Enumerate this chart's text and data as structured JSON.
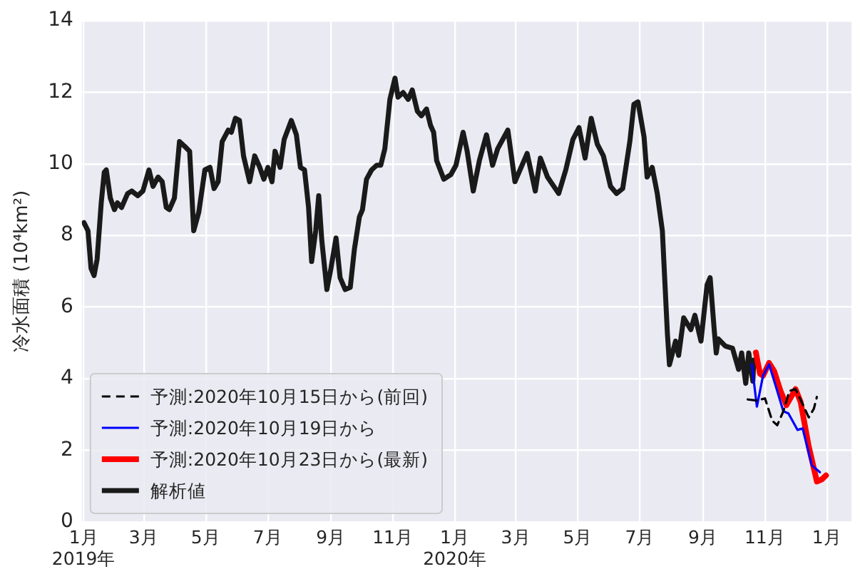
{
  "chart_data": {
    "type": "line",
    "ylabel": "冷水面積 (10⁴km²)",
    "xlim": [
      "2018-12-30",
      "2021-01-25"
    ],
    "ylim": [
      0,
      14
    ],
    "yticks": [
      0,
      2,
      4,
      6,
      8,
      10,
      12,
      14
    ],
    "xticks": [
      {
        "value": "2019-01-01",
        "label": "1月\n2019年"
      },
      {
        "value": "2019-03-01",
        "label": "3月"
      },
      {
        "value": "2019-05-01",
        "label": "5月"
      },
      {
        "value": "2019-07-01",
        "label": "7月"
      },
      {
        "value": "2019-09-01",
        "label": "9月"
      },
      {
        "value": "2019-11-01",
        "label": "11月"
      },
      {
        "value": "2020-01-01",
        "label": "1月\n2020年"
      },
      {
        "value": "2020-03-01",
        "label": "3月"
      },
      {
        "value": "2020-05-01",
        "label": "5月"
      },
      {
        "value": "2020-07-01",
        "label": "7月"
      },
      {
        "value": "2020-09-01",
        "label": "9月"
      },
      {
        "value": "2020-11-01",
        "label": "11月"
      },
      {
        "value": "2021-01-01",
        "label": "1月"
      }
    ],
    "grid": true,
    "legend": "bottom left",
    "marker": "none",
    "series": [
      {
        "name": "予測:2020年10月15日から(前回)",
        "color": "#000000",
        "line_style": "dashed",
        "x": [
          "2020-10-15",
          "2020-10-24",
          "2020-11-01",
          "2020-11-08",
          "2020-11-13",
          "2020-11-19",
          "2020-11-25",
          "2020-12-01",
          "2020-12-08",
          "2020-12-14",
          "2020-12-19",
          "2020-12-22"
        ],
        "values": [
          3.42,
          3.39,
          3.45,
          2.83,
          2.7,
          3.09,
          3.66,
          3.71,
          3.29,
          2.92,
          3.16,
          3.49
        ]
      },
      {
        "name": "予測:2020年10月19日から",
        "color": "#0000ff",
        "line_style": "solid",
        "x": [
          "2020-10-19",
          "2020-10-24",
          "2020-10-30",
          "2020-11-05",
          "2020-11-12",
          "2020-11-19",
          "2020-11-24",
          "2020-12-03",
          "2020-12-08",
          "2020-12-17",
          "2020-12-25"
        ],
        "values": [
          4.4,
          3.22,
          4.08,
          4.4,
          3.75,
          3.09,
          3.03,
          2.57,
          2.61,
          1.58,
          1.39
        ]
      },
      {
        "name": "予測:2020年10月23日から(最新)",
        "color": "#ff0000",
        "line_style": "solid",
        "x": [
          "2020-10-23",
          "2020-10-27",
          "2020-10-30",
          "2020-11-05",
          "2020-11-10",
          "2020-11-16",
          "2020-11-22",
          "2020-12-01",
          "2020-12-06",
          "2020-12-14",
          "2020-12-22",
          "2020-12-27",
          "2020-12-31"
        ],
        "values": [
          4.73,
          4.14,
          4.08,
          4.44,
          4.21,
          3.68,
          3.26,
          3.71,
          3.35,
          2.11,
          1.13,
          1.19,
          1.3
        ]
      },
      {
        "name": "解析値",
        "color": "#1a1a1a",
        "line_style": "solid",
        "x": [
          "2019-01-01",
          "2019-01-05",
          "2019-01-08",
          "2019-01-11",
          "2019-01-14",
          "2019-01-18",
          "2019-01-21",
          "2019-01-23",
          "2019-01-27",
          "2019-01-31",
          "2019-02-03",
          "2019-02-07",
          "2019-02-13",
          "2019-02-17",
          "2019-02-23",
          "2019-02-28",
          "2019-03-06",
          "2019-03-10",
          "2019-03-15",
          "2019-03-19",
          "2019-03-23",
          "2019-03-26",
          "2019-03-31",
          "2019-04-05",
          "2019-04-10",
          "2019-04-15",
          "2019-04-19",
          "2019-04-24",
          "2019-04-30",
          "2019-05-05",
          "2019-05-09",
          "2019-05-13",
          "2019-05-17",
          "2019-05-23",
          "2019-05-26",
          "2019-05-30",
          "2019-06-03",
          "2019-06-07",
          "2019-06-13",
          "2019-06-18",
          "2019-06-23",
          "2019-06-27",
          "2019-07-01",
          "2019-07-05",
          "2019-07-08",
          "2019-07-13",
          "2019-07-17",
          "2019-07-24",
          "2019-07-29",
          "2019-08-02",
          "2019-08-06",
          "2019-08-10",
          "2019-08-13",
          "2019-08-17",
          "2019-08-20",
          "2019-08-23",
          "2019-08-28",
          "2019-09-01",
          "2019-09-06",
          "2019-09-10",
          "2019-09-15",
          "2019-09-20",
          "2019-09-24",
          "2019-09-29",
          "2019-10-02",
          "2019-10-06",
          "2019-10-11",
          "2019-10-16",
          "2019-10-20",
          "2019-10-24",
          "2019-10-29",
          "2019-11-03",
          "2019-11-06",
          "2019-11-11",
          "2019-11-16",
          "2019-11-20",
          "2019-11-25",
          "2019-11-29",
          "2019-12-04",
          "2019-12-08",
          "2019-12-11",
          "2019-12-14",
          "2019-12-21",
          "2019-12-28",
          "2020-01-02",
          "2020-01-09",
          "2020-01-13",
          "2020-01-19",
          "2020-01-25",
          "2020-02-01",
          "2020-02-07",
          "2020-02-12",
          "2020-02-22",
          "2020-02-29",
          "2020-03-07",
          "2020-03-12",
          "2020-03-20",
          "2020-03-25",
          "2020-04-01",
          "2020-04-12",
          "2020-04-19",
          "2020-04-26",
          "2020-05-02",
          "2020-05-08",
          "2020-05-14",
          "2020-05-20",
          "2020-05-26",
          "2020-06-02",
          "2020-06-08",
          "2020-06-14",
          "2020-06-21",
          "2020-06-25",
          "2020-06-29",
          "2020-07-05",
          "2020-07-08",
          "2020-07-13",
          "2020-07-18",
          "2020-07-23",
          "2020-07-28",
          "2020-07-30",
          "2020-08-05",
          "2020-08-08",
          "2020-08-13",
          "2020-08-20",
          "2020-08-24",
          "2020-08-30",
          "2020-09-05",
          "2020-09-08",
          "2020-09-12",
          "2020-09-14",
          "2020-09-16",
          "2020-09-23",
          "2020-09-30",
          "2020-10-06",
          "2020-10-09",
          "2020-10-13",
          "2020-10-16",
          "2020-10-20",
          "2020-10-21"
        ],
        "values": [
          8.36,
          8.13,
          7.08,
          6.88,
          7.34,
          8.9,
          9.76,
          9.83,
          9.04,
          8.72,
          8.91,
          8.78,
          9.17,
          9.24,
          9.11,
          9.24,
          9.83,
          9.37,
          9.63,
          9.5,
          8.78,
          8.72,
          9.04,
          10.62,
          10.49,
          10.35,
          8.13,
          8.65,
          9.83,
          9.9,
          9.31,
          9.5,
          10.62,
          10.94,
          10.88,
          11.27,
          11.21,
          10.22,
          9.5,
          10.22,
          9.9,
          9.57,
          9.9,
          9.5,
          10.35,
          9.9,
          10.68,
          11.21,
          10.81,
          9.9,
          9.83,
          8.78,
          7.27,
          8.13,
          9.11,
          7.86,
          6.49,
          7.08,
          7.93,
          6.82,
          6.49,
          6.55,
          7.6,
          8.52,
          8.72,
          9.57,
          9.83,
          9.96,
          9.96,
          10.42,
          11.8,
          12.39,
          11.86,
          11.99,
          11.8,
          12.06,
          11.47,
          11.34,
          11.53,
          11.07,
          10.88,
          10.09,
          9.57,
          9.7,
          9.96,
          10.88,
          10.35,
          9.24,
          10.09,
          10.81,
          9.96,
          10.42,
          10.94,
          9.5,
          9.96,
          10.29,
          9.24,
          10.16,
          9.63,
          9.17,
          9.83,
          10.68,
          11.01,
          10.16,
          11.27,
          10.55,
          10.22,
          9.37,
          9.17,
          9.31,
          10.62,
          11.66,
          11.73,
          10.75,
          9.63,
          9.9,
          9.17,
          8.13,
          5.24,
          4.39,
          5.05,
          4.65,
          5.7,
          5.37,
          5.77,
          5.05,
          6.62,
          6.82,
          5.37,
          4.72,
          5.11,
          4.91,
          4.85,
          4.26,
          4.72,
          3.87,
          4.72,
          3.93,
          4.52
        ]
      }
    ]
  }
}
